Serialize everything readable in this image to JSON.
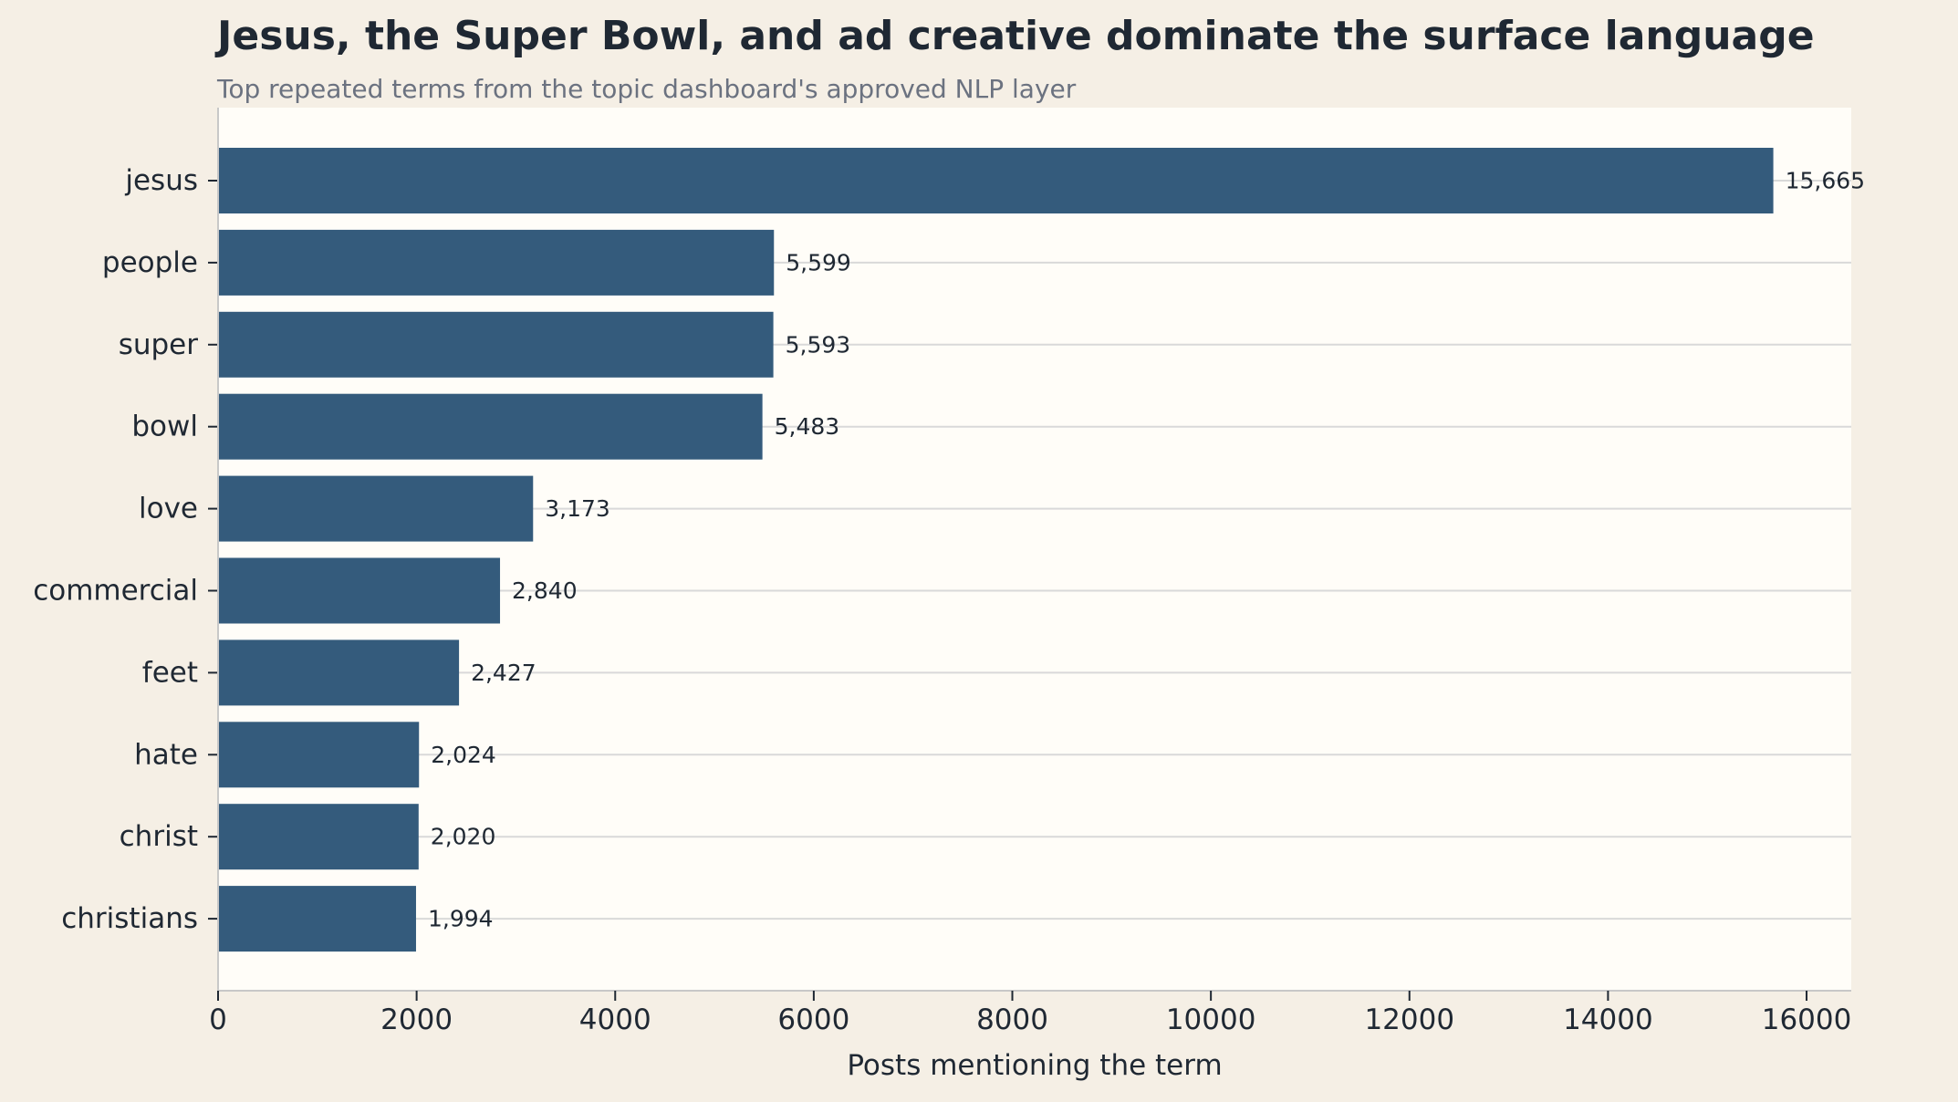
{
  "chart_data": {
    "type": "bar",
    "orientation": "horizontal",
    "title": "Jesus, the Super Bowl, and ad creative dominate the surface language",
    "subtitle": "Top repeated terms from the topic dashboard's approved NLP layer",
    "xlabel": "Posts mentioning the term",
    "ylabel": "",
    "categories": [
      "jesus",
      "people",
      "super",
      "bowl",
      "love",
      "commercial",
      "feet",
      "hate",
      "christ",
      "christians"
    ],
    "values": [
      15665,
      5599,
      5593,
      5483,
      3173,
      2840,
      2427,
      2024,
      2020,
      1994
    ],
    "value_labels": [
      "15,665",
      "5,599",
      "5,593",
      "5,483",
      "3,173",
      "2,840",
      "2,427",
      "2,024",
      "2,020",
      "1,994"
    ],
    "xlim": [
      0,
      16450
    ],
    "xticks": [
      0,
      2000,
      4000,
      6000,
      8000,
      10000,
      12000,
      14000,
      16000
    ],
    "xtick_labels": [
      "0",
      "2000",
      "4000",
      "6000",
      "8000",
      "10000",
      "12000",
      "14000",
      "16000"
    ],
    "grid": "horizontal lines at each category",
    "colors": {
      "bar": "#345b7c",
      "plot_background": "#fffdf8",
      "figure_background": "#f5efe5",
      "grid": "#d9d9d9",
      "axis": "#c8c8c8",
      "text": "#1f2833",
      "subtitle": "#6b7280"
    }
  }
}
